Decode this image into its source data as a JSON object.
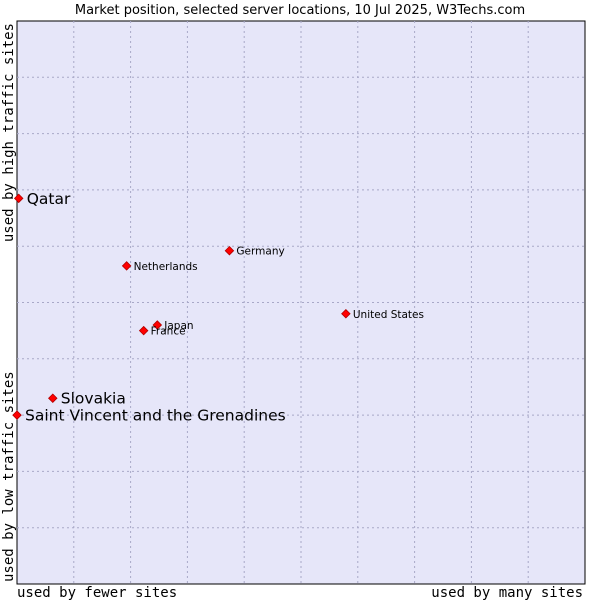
{
  "chart_data": {
    "type": "scatter",
    "title": "Market position, selected server locations, 10 Jul 2025, W3Techs.com",
    "xlabel_left": "used by fewer sites",
    "xlabel_right": "used by many sites",
    "ylabel_bottom": "used by low traffic sites",
    "ylabel_top": "used by high traffic sites",
    "xlim": [
      0,
      10
    ],
    "ylim": [
      0,
      10
    ],
    "grid": true,
    "colors": {
      "plot_bg": "#e6e6f9",
      "grid": "#a8a8c8",
      "point": "#ff0000",
      "point_edge": "#b00000"
    },
    "points": [
      {
        "name": "Qatar",
        "x": 0.03,
        "y": 6.85,
        "emphasis": true
      },
      {
        "name": "Germany",
        "x": 3.74,
        "y": 5.92,
        "emphasis": false
      },
      {
        "name": "Netherlands",
        "x": 1.93,
        "y": 5.65,
        "emphasis": false
      },
      {
        "name": "United States",
        "x": 5.79,
        "y": 4.8,
        "emphasis": false
      },
      {
        "name": "Japan",
        "x": 2.47,
        "y": 4.6,
        "emphasis": false
      },
      {
        "name": "France",
        "x": 2.23,
        "y": 4.5,
        "emphasis": false
      },
      {
        "name": "Slovakia",
        "x": 0.63,
        "y": 3.3,
        "emphasis": true
      },
      {
        "name": "Saint Vincent and the Grenadines",
        "x": 0.0,
        "y": 3.0,
        "emphasis": true
      }
    ]
  }
}
